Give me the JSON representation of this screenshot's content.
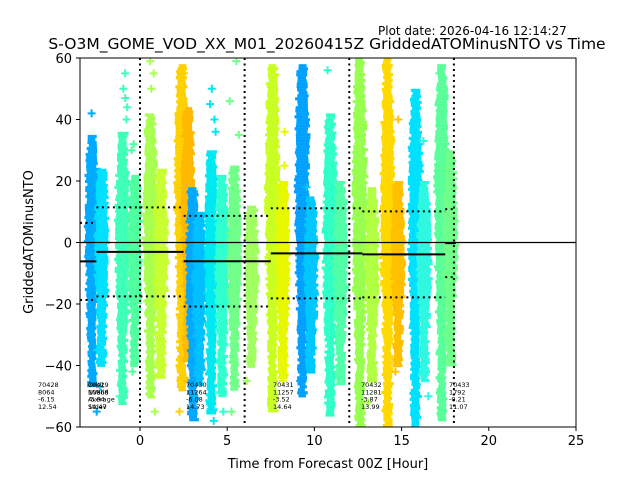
{
  "chart_data": {
    "type": "scatter",
    "title": "S-O3M_GOME_VOD_XX_M01_20260415Z GriddedATOMinusNTO vs Time",
    "plot_date": "Plot date: 2026-04-16 12:14:27",
    "xlabel": "Time from Forecast 00Z [Hour]",
    "ylabel": "GriddedATOMinusNTO",
    "xlim": [
      -3.44,
      25
    ],
    "ylim": [
      -60,
      60
    ],
    "xticks": [
      "0",
      "5",
      "10",
      "15",
      "20",
      "25"
    ],
    "xtick_values": [
      0,
      5,
      10,
      15,
      20,
      25
    ],
    "yticks": [
      "60",
      "40",
      "20",
      "0",
      "−20",
      "−40",
      "−60"
    ],
    "ytick_values": [
      60,
      40,
      20,
      0,
      -20,
      -40,
      -60
    ],
    "zero_line": 0,
    "orbit_boundaries": [
      0,
      6,
      12,
      18
    ],
    "stats_labels": [
      "Orbit",
      "NValid",
      "Average",
      "Stdev"
    ],
    "orbits": [
      {
        "orbit": "70428",
        "nvalid": "8064",
        "average": "-6.15",
        "stdev": "12.54",
        "start": -3.44,
        "end": -2.5,
        "avg": -6.15,
        "std": 12.54
      },
      {
        "orbit": "70429",
        "nvalid": "10868",
        "average": "-3.04",
        "stdev": "14.47",
        "start": -2.5,
        "end": 2.5,
        "avg": -3.04,
        "std": 14.47
      },
      {
        "orbit": "70430",
        "nvalid": "11264",
        "average": "-6.08",
        "stdev": "14.73",
        "start": 2.5,
        "end": 7.5,
        "avg": -6.08,
        "std": 14.73
      },
      {
        "orbit": "70431",
        "nvalid": "11257",
        "average": "-3.52",
        "stdev": "14.64",
        "start": 7.5,
        "end": 12.75,
        "avg": -3.52,
        "std": 14.64
      },
      {
        "orbit": "70432",
        "nvalid": "11281",
        "average": "-3.87",
        "stdev": "13.99",
        "start": 12.75,
        "end": 17.5,
        "avg": -3.87,
        "std": 13.99
      },
      {
        "orbit": "70433",
        "nvalid": "1792",
        "average": "-0.21",
        "stdev": "11.07",
        "start": 17.5,
        "end": 18.1,
        "avg": -0.21,
        "std": 11.07
      }
    ],
    "strips": [
      {
        "x": -2.75,
        "ymin": -46,
        "ymax": 35,
        "color": "#00aaff",
        "outliers": [
          42,
          -55,
          22,
          14
        ]
      },
      {
        "x": -2.2,
        "ymin": -40,
        "ymax": 24,
        "color": "#00e0ff",
        "outliers": [
          -35,
          -47,
          23
        ]
      },
      {
        "x": -1.0,
        "ymin": -52,
        "ymax": 36,
        "color": "#40ffb8",
        "outliers": [
          55,
          50,
          47,
          44,
          40,
          -50
        ]
      },
      {
        "x": -0.3,
        "ymin": -40,
        "ymax": 22,
        "color": "#50ffa0",
        "outliers": [
          30,
          32,
          -42
        ]
      },
      {
        "x": 0.6,
        "ymin": -50,
        "ymax": 42,
        "color": "#a8ff50",
        "outliers": [
          59,
          55,
          50,
          -55
        ]
      },
      {
        "x": 1.2,
        "ymin": -44,
        "ymax": 24,
        "color": "#c8ff30",
        "outliers": [
          -38,
          -30
        ]
      },
      {
        "x": 2.4,
        "ymin": -48,
        "ymax": 58,
        "color": "#ffd000",
        "outliers": [
          55,
          48,
          -55
        ]
      },
      {
        "x": 2.75,
        "ymin": -38,
        "ymax": 44,
        "color": "#ffb800",
        "outliers": [
          -45
        ]
      },
      {
        "x": 3.05,
        "ymin": -58,
        "ymax": 18,
        "color": "#00a8ff",
        "outliers": [
          -55
        ]
      },
      {
        "x": 3.4,
        "ymin": -46,
        "ymax": 10,
        "color": "#00c0ff",
        "outliers": [
          -50
        ]
      },
      {
        "x": 4.1,
        "ymin": -55,
        "ymax": 30,
        "color": "#00e8f0",
        "outliers": [
          50,
          45,
          40,
          36,
          -58
        ]
      },
      {
        "x": 4.7,
        "ymin": -50,
        "ymax": 22,
        "color": "#30ffd0",
        "outliers": [
          -55
        ]
      },
      {
        "x": 5.4,
        "ymin": -48,
        "ymax": 25,
        "color": "#70ff88",
        "outliers": [
          59,
          46,
          35,
          -55
        ]
      },
      {
        "x": 6.4,
        "ymin": -40,
        "ymax": 12,
        "color": "#a0ff60",
        "outliers": [
          -45
        ]
      },
      {
        "x": 7.6,
        "ymin": -55,
        "ymax": 58,
        "color": "#c8ff20",
        "outliers": []
      },
      {
        "x": 8.2,
        "ymin": -44,
        "ymax": 20,
        "color": "#e8f800",
        "outliers": [
          36,
          25,
          18,
          -38,
          -45
        ]
      },
      {
        "x": 9.3,
        "ymin": -50,
        "ymax": 58,
        "color": "#00a0ff",
        "outliers": [
          -45
        ]
      },
      {
        "x": 9.8,
        "ymin": -42,
        "ymax": 15,
        "color": "#00c8ff",
        "outliers": [
          18,
          -35
        ]
      },
      {
        "x": 10.9,
        "ymin": -56,
        "ymax": 42,
        "color": "#30ffc8",
        "outliers": [
          56,
          -55
        ]
      },
      {
        "x": 11.5,
        "ymin": -46,
        "ymax": 20,
        "color": "#50ffa8",
        "outliers": [
          -42
        ]
      },
      {
        "x": 12.6,
        "ymin": -60,
        "ymax": 60,
        "color": "#98ff50",
        "outliers": []
      },
      {
        "x": 13.3,
        "ymin": -45,
        "ymax": 18,
        "color": "#b0ff40",
        "outliers": [
          -45,
          -52
        ]
      },
      {
        "x": 14.2,
        "ymin": -60,
        "ymax": 60,
        "color": "#ffd800",
        "outliers": []
      },
      {
        "x": 14.8,
        "ymin": -40,
        "ymax": 20,
        "color": "#ffc000",
        "outliers": [
          40,
          -42
        ]
      },
      {
        "x": 15.8,
        "ymin": -60,
        "ymax": 50,
        "color": "#00e0ff",
        "outliers": [
          -50
        ]
      },
      {
        "x": 16.3,
        "ymin": -45,
        "ymax": 20,
        "color": "#30f8e0",
        "outliers": [
          33,
          -50
        ]
      },
      {
        "x": 17.3,
        "ymin": -58,
        "ymax": 58,
        "color": "#58ff98",
        "outliers": [
          55
        ]
      },
      {
        "x": 17.8,
        "ymin": -40,
        "ymax": 30,
        "color": "#70ff88",
        "outliers": [
          -30
        ]
      }
    ]
  }
}
